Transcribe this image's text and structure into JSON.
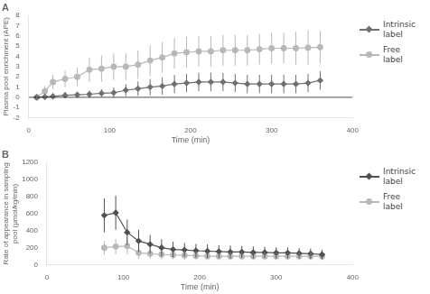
{
  "chart_data": [
    {
      "type": "line",
      "title": "A",
      "xlabel": "Time (min)",
      "ylabel": "Plasma pool enrichment (APE)",
      "xlim": [
        0,
        400
      ],
      "ylim": [
        -2,
        8
      ],
      "xticks": [
        0,
        100,
        200,
        300,
        400
      ],
      "yticks": [
        -2,
        -1,
        0,
        1,
        2,
        3,
        4,
        5,
        6,
        7,
        8
      ],
      "grid": false,
      "legend": "right",
      "hlines": [
        0
      ],
      "series": [
        {
          "name": "Intrinsic\nlabel",
          "color": "#707070",
          "marker": "diamond",
          "x": [
            10,
            20,
            30,
            45,
            60,
            75,
            90,
            105,
            120,
            135,
            150,
            165,
            180,
            195,
            210,
            225,
            240,
            255,
            270,
            285,
            300,
            315,
            330,
            345,
            360
          ],
          "values": [
            0.0,
            0.05,
            0.1,
            0.2,
            0.25,
            0.3,
            0.4,
            0.45,
            0.7,
            0.85,
            1.0,
            1.1,
            1.3,
            1.4,
            1.5,
            1.5,
            1.5,
            1.4,
            1.3,
            1.3,
            1.3,
            1.3,
            1.3,
            1.4,
            1.65
          ],
          "yerr": [
            0.3,
            0.3,
            0.3,
            0.3,
            0.3,
            0.35,
            0.4,
            0.5,
            0.6,
            0.7,
            0.8,
            0.85,
            0.9,
            0.9,
            0.9,
            0.9,
            0.9,
            0.9,
            0.9,
            0.9,
            0.9,
            0.9,
            0.9,
            0.9,
            0.9
          ]
        },
        {
          "name": "Free\nlabel",
          "color": "#b8b8b8",
          "marker": "circle",
          "x": [
            10,
            20,
            30,
            45,
            60,
            75,
            90,
            105,
            120,
            135,
            150,
            165,
            180,
            195,
            210,
            225,
            240,
            255,
            270,
            285,
            300,
            315,
            330,
            345,
            360
          ],
          "values": [
            0.0,
            0.6,
            1.5,
            1.8,
            2.0,
            2.7,
            2.8,
            3.0,
            3.0,
            3.2,
            3.6,
            3.9,
            4.3,
            4.4,
            4.5,
            4.5,
            4.6,
            4.6,
            4.6,
            4.7,
            4.8,
            4.8,
            4.8,
            4.85,
            4.9
          ],
          "yerr": [
            0.2,
            0.5,
            0.7,
            0.8,
            0.9,
            1.2,
            1.3,
            1.3,
            1.3,
            1.4,
            1.5,
            1.5,
            1.5,
            1.5,
            1.5,
            1.5,
            1.5,
            1.5,
            1.5,
            1.5,
            1.5,
            1.5,
            1.6,
            1.7,
            1.6
          ]
        }
      ]
    },
    {
      "type": "line",
      "title": "B",
      "xlabel": "Time (min)",
      "ylabel": "Rate of appearance in sampling\npool (μmol/kg/min)",
      "xlim": [
        0,
        400
      ],
      "ylim": [
        0,
        1200
      ],
      "xticks": [
        0,
        100,
        200,
        300,
        400
      ],
      "yticks": [
        0,
        200,
        400,
        600,
        800,
        1000,
        1200
      ],
      "grid": false,
      "legend": "right",
      "series": [
        {
          "name": "Intrinsic\nlabel",
          "color": "#505050",
          "marker": "diamond",
          "x": [
            75,
            90,
            105,
            120,
            135,
            150,
            165,
            180,
            195,
            210,
            225,
            240,
            255,
            270,
            285,
            300,
            315,
            330,
            345,
            360
          ],
          "values": [
            580,
            610,
            380,
            280,
            240,
            200,
            180,
            175,
            165,
            160,
            155,
            150,
            150,
            145,
            145,
            140,
            140,
            135,
            130,
            120
          ],
          "yerr": [
            200,
            200,
            150,
            130,
            110,
            100,
            90,
            80,
            80,
            80,
            75,
            75,
            70,
            70,
            65,
            65,
            65,
            60,
            60,
            55
          ]
        },
        {
          "name": "Free\nlabel",
          "color": "#b8b8b8",
          "marker": "circle",
          "x": [
            75,
            90,
            105,
            120,
            135,
            150,
            165,
            180,
            195,
            210,
            225,
            240,
            255,
            270,
            285,
            300,
            315,
            330,
            345,
            360
          ],
          "values": [
            200,
            215,
            220,
            140,
            130,
            120,
            115,
            110,
            105,
            100,
            100,
            100,
            100,
            100,
            100,
            100,
            100,
            100,
            100,
            100
          ],
          "yerr": [
            80,
            90,
            100,
            70,
            60,
            55,
            50,
            50,
            50,
            45,
            45,
            45,
            45,
            45,
            45,
            45,
            45,
            45,
            45,
            45
          ]
        }
      ]
    }
  ]
}
